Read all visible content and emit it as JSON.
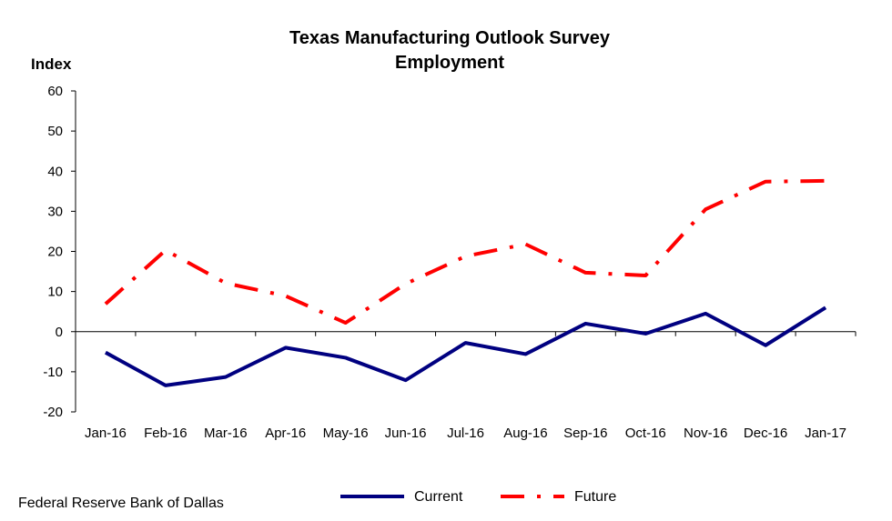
{
  "chart_data": {
    "type": "line",
    "title": "Texas Manufacturing Outlook Survey",
    "subtitle": "Employment",
    "ylabel": "Index",
    "xlabel": "",
    "ylim": [
      -20,
      60
    ],
    "yticks": [
      60,
      50,
      40,
      30,
      20,
      10,
      0,
      -10,
      -20
    ],
    "categories": [
      "Jan-16",
      "Feb-16",
      "Mar-16",
      "Apr-16",
      "May-16",
      "Jun-16",
      "Jul-16",
      "Aug-16",
      "Sep-16",
      "Oct-16",
      "Nov-16",
      "Dec-16",
      "Jan-17"
    ],
    "series": [
      {
        "name": "Current",
        "color": "#000080",
        "style": "solid",
        "values": [
          -5.2,
          -13.4,
          -11.3,
          -4.0,
          -6.5,
          -12.1,
          -2.8,
          -5.6,
          2.0,
          -0.5,
          4.5,
          -3.4,
          6.0
        ]
      },
      {
        "name": "Future",
        "color": "#ff0000",
        "style": "dash-dot",
        "values": [
          6.9,
          20.3,
          12.1,
          8.9,
          2.2,
          11.9,
          18.8,
          21.8,
          14.7,
          14.0,
          30.5,
          37.4,
          37.6
        ]
      }
    ],
    "legend_position": "bottom-center",
    "grid": false
  },
  "source": "Federal Reserve Bank of Dallas"
}
